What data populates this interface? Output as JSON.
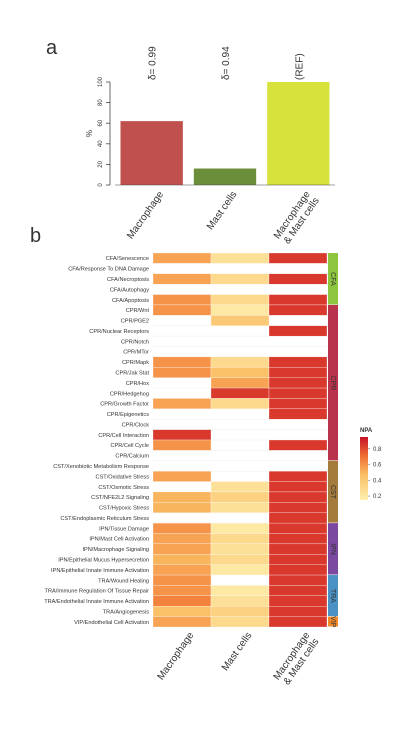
{
  "chart_data": [
    {
      "type": "bar",
      "panel": "a",
      "ylabel": "%",
      "categories": [
        "Macrophage",
        "Mast cells",
        "Macrophage\n& Mast cells"
      ],
      "values": [
        62,
        16,
        100
      ],
      "colors": [
        "#c0504d",
        "#6b8e3a",
        "#d7e23c"
      ],
      "annotations": [
        "δ= 0.99",
        "δ= 0.94",
        "(REF)"
      ],
      "ylim": [
        0,
        100
      ],
      "yticks": [
        0,
        20,
        40,
        60,
        80,
        100
      ]
    },
    {
      "type": "heatmap",
      "panel": "b",
      "legend_title": "NPA",
      "categories": [
        "CFA/Senescence",
        "CFA/Response To DNA Damage",
        "CFA/Necroptosis",
        "CFA/Autophagy",
        "CFA/Apoptosis",
        "CPR/Wnt",
        "CPR/PGE2",
        "CPR/Nuclear Receptors",
        "CPR/Notch",
        "CPR/MTor",
        "CPR/Mapk",
        "CPR/Jak Stat",
        "CPR/Hox",
        "CPR/Hedgehog",
        "CPR/Growth Factor",
        "CPR/Epigenetics",
        "CPR/Clock",
        "CPR/Cell Interaction",
        "CPR/Cell Cycle",
        "CPR/Calcium",
        "CST/Xenobiotic Metabolism Response",
        "CST/Oxidative Stress",
        "CST/Osmotic Stress",
        "CST/NFE2L2 Signaling",
        "CST/Hypoxic Stress",
        "CST/Endoplasmic Reticulum Stress",
        "IPN/Tissue Damage",
        "IPN/Mast Cell Activation",
        "IPN/Macrophage Signaling",
        "IPN/Epithelial Mucus Hypersecretion",
        "IPN/Epithelial Innate Immune Activation",
        "TRA/Wound Healing",
        "TRA/Immune Regulation Of Tissue Repair",
        "TRA/Endothelial Innate Immune Activation",
        "TRA/Angiogenesis",
        "VIP/Endothelial Cell Activation"
      ],
      "series": [
        {
          "name": "Macrophage",
          "values": [
            0.55,
            null,
            0.55,
            null,
            0.6,
            0.6,
            null,
            null,
            null,
            null,
            0.6,
            0.6,
            null,
            null,
            0.55,
            null,
            null,
            0.85,
            0.6,
            null,
            null,
            0.55,
            null,
            0.5,
            0.5,
            null,
            0.6,
            0.55,
            0.55,
            0.5,
            0.55,
            0.6,
            0.6,
            0.65,
            0.45,
            0.55
          ]
        },
        {
          "name": "Mast cells",
          "values": [
            0.25,
            null,
            0.3,
            null,
            0.3,
            0.2,
            0.4,
            null,
            null,
            null,
            0.3,
            0.45,
            0.55,
            0.85,
            0.3,
            null,
            null,
            null,
            null,
            null,
            null,
            null,
            0.25,
            0.35,
            0.25,
            null,
            0.2,
            0.3,
            0.25,
            0.3,
            0.2,
            null,
            0.2,
            0.25,
            0.35,
            0.3
          ]
        },
        {
          "name": "Macrophage\n& Mast cells",
          "values": [
            0.85,
            null,
            0.85,
            null,
            0.85,
            0.85,
            null,
            0.85,
            null,
            null,
            0.85,
            0.85,
            0.85,
            0.85,
            0.85,
            0.85,
            null,
            null,
            0.85,
            null,
            null,
            0.85,
            0.85,
            0.85,
            0.85,
            0.85,
            0.85,
            0.85,
            0.85,
            0.85,
            0.85,
            0.85,
            0.85,
            0.85,
            0.85,
            0.85
          ]
        }
      ],
      "groups": [
        {
          "name": "CFA",
          "color": "#8cc63f"
        },
        {
          "name": "CPR",
          "color": "#b8334b"
        },
        {
          "name": "CST",
          "color": "#a57c3c"
        },
        {
          "name": "IPN",
          "color": "#7b4aa0"
        },
        {
          "name": "TRA",
          "color": "#4a92c4"
        },
        {
          "name": "VIP",
          "color": "#f08a2a"
        }
      ],
      "clim": [
        0.15,
        0.95
      ],
      "colorbar_ticks": [
        0.2,
        0.4,
        0.6,
        0.8
      ]
    }
  ]
}
